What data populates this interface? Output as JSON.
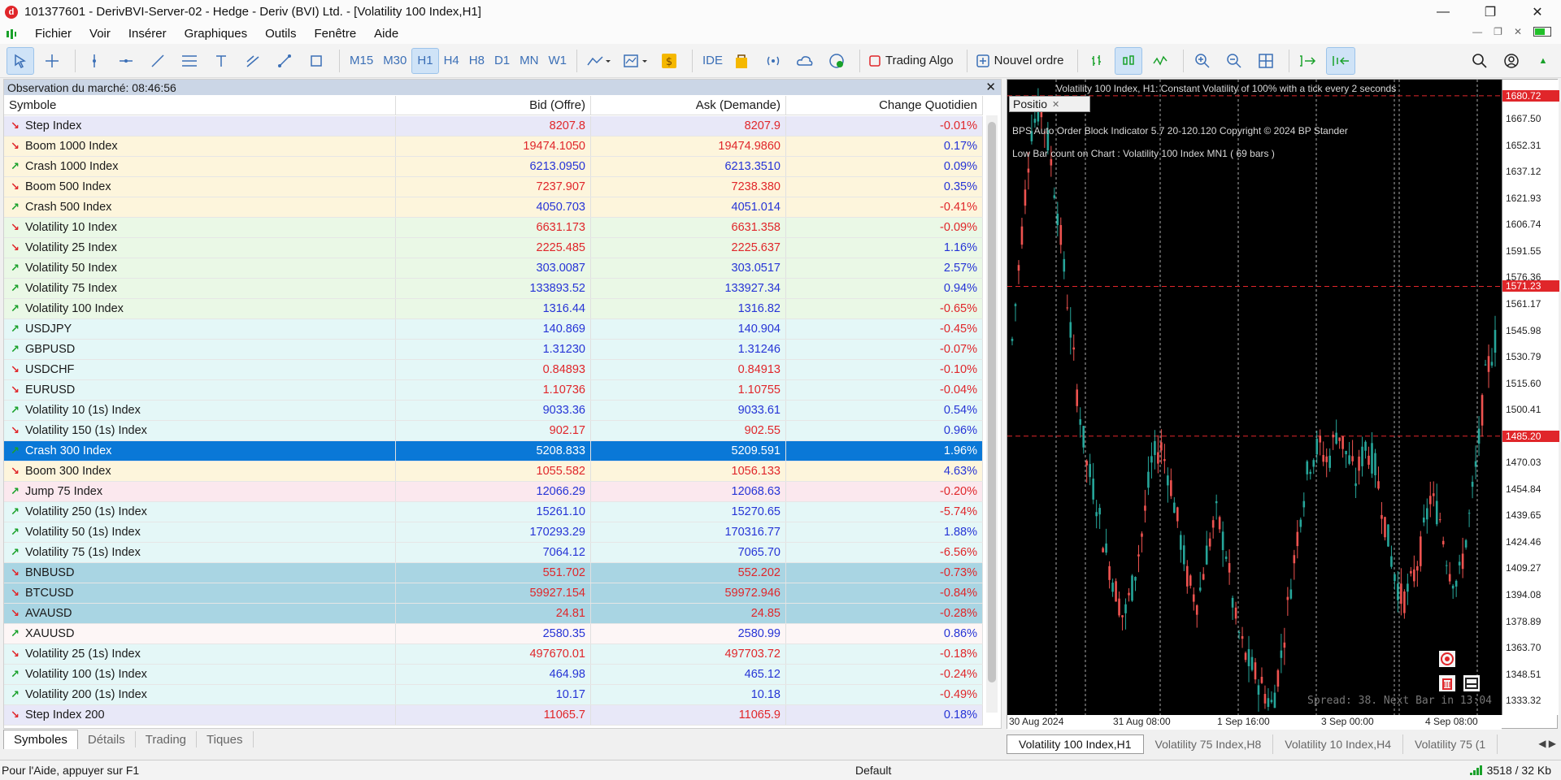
{
  "window": {
    "title": "101377601 - DerivBVI-Server-02 - Hedge - Deriv (BVI) Ltd. - [Volatility 100 Index,H1]",
    "logo_letter": "d"
  },
  "menu": [
    "Fichier",
    "Voir",
    "Insérer",
    "Graphiques",
    "Outils",
    "Fenêtre",
    "Aide"
  ],
  "toolbar": {
    "timeframes": [
      "M15",
      "M30",
      "H1",
      "H4",
      "H8",
      "D1",
      "MN",
      "W1"
    ],
    "active_timeframe": "H1",
    "ide_label": "IDE",
    "algo_label": "Trading Algo",
    "new_order_label": "Nouvel ordre"
  },
  "market_watch": {
    "header": "Observation du marché: 08:46:56",
    "columns": [
      "Symbole",
      "Bid (Offre)",
      "Ask (Demande)",
      "Change Quotidien"
    ],
    "rows": [
      {
        "symbol": "Step Index",
        "bid": "8207.8",
        "ask": "8207.9",
        "change": "-0.01%",
        "dir": "dn",
        "bg": "#e8e8f8",
        "color": "red"
      },
      {
        "symbol": "Boom 1000 Index",
        "bid": "19474.1050",
        "ask": "19474.9860",
        "change": "0.17%",
        "dir": "dn",
        "bg": "#fdf5dc",
        "color": "red"
      },
      {
        "symbol": "Crash 1000 Index",
        "bid": "6213.0950",
        "ask": "6213.3510",
        "change": "0.09%",
        "dir": "up",
        "bg": "#fdf5dc",
        "color": "blue"
      },
      {
        "symbol": "Boom 500 Index",
        "bid": "7237.907",
        "ask": "7238.380",
        "change": "0.35%",
        "dir": "dn",
        "bg": "#fdf5dc",
        "color": "red"
      },
      {
        "symbol": "Crash 500 Index",
        "bid": "4050.703",
        "ask": "4051.014",
        "change": "-0.41%",
        "dir": "up",
        "bg": "#fdf5dc",
        "color": "blue"
      },
      {
        "symbol": "Volatility 10 Index",
        "bid": "6631.173",
        "ask": "6631.358",
        "change": "-0.09%",
        "dir": "dn",
        "bg": "#eaf8e6",
        "color": "red"
      },
      {
        "symbol": "Volatility 25 Index",
        "bid": "2225.485",
        "ask": "2225.637",
        "change": "1.16%",
        "dir": "dn",
        "bg": "#eaf8e6",
        "color": "red"
      },
      {
        "symbol": "Volatility 50 Index",
        "bid": "303.0087",
        "ask": "303.0517",
        "change": "2.57%",
        "dir": "up",
        "bg": "#eaf8e6",
        "color": "blue"
      },
      {
        "symbol": "Volatility 75 Index",
        "bid": "133893.52",
        "ask": "133927.34",
        "change": "0.94%",
        "dir": "up",
        "bg": "#eaf8e6",
        "color": "blue"
      },
      {
        "symbol": "Volatility 100 Index",
        "bid": "1316.44",
        "ask": "1316.82",
        "change": "-0.65%",
        "dir": "up",
        "bg": "#eaf8e6",
        "color": "blue"
      },
      {
        "symbol": "USDJPY",
        "bid": "140.869",
        "ask": "140.904",
        "change": "-0.45%",
        "dir": "up",
        "bg": "#e4f7f7",
        "color": "blue"
      },
      {
        "symbol": "GBPUSD",
        "bid": "1.31230",
        "ask": "1.31246",
        "change": "-0.07%",
        "dir": "up",
        "bg": "#e4f7f7",
        "color": "blue"
      },
      {
        "symbol": "USDCHF",
        "bid": "0.84893",
        "ask": "0.84913",
        "change": "-0.10%",
        "dir": "dn",
        "bg": "#e4f7f7",
        "color": "red"
      },
      {
        "symbol": "EURUSD",
        "bid": "1.10736",
        "ask": "1.10755",
        "change": "-0.04%",
        "dir": "dn",
        "bg": "#e4f7f7",
        "color": "red"
      },
      {
        "symbol": "Volatility 10 (1s) Index",
        "bid": "9033.36",
        "ask": "9033.61",
        "change": "0.54%",
        "dir": "up",
        "bg": "#e4f7f7",
        "color": "blue"
      },
      {
        "symbol": "Volatility 150 (1s) Index",
        "bid": "902.17",
        "ask": "902.55",
        "change": "0.96%",
        "dir": "dn",
        "bg": "#e4f7f7",
        "color": "red"
      },
      {
        "symbol": "Crash 300 Index",
        "bid": "5208.833",
        "ask": "5209.591",
        "change": "1.96%",
        "dir": "up",
        "bg": "#0a78d7",
        "color": "blue",
        "selected": true
      },
      {
        "symbol": "Boom 300 Index",
        "bid": "1055.582",
        "ask": "1056.133",
        "change": "4.63%",
        "dir": "dn",
        "bg": "#fdf5dc",
        "color": "red"
      },
      {
        "symbol": "Jump 75 Index",
        "bid": "12066.29",
        "ask": "12068.63",
        "change": "-0.20%",
        "dir": "up",
        "bg": "#fbe8ee",
        "color": "blue"
      },
      {
        "symbol": "Volatility 250 (1s) Index",
        "bid": "15261.10",
        "ask": "15270.65",
        "change": "-5.74%",
        "dir": "up",
        "bg": "#e4f7f7",
        "color": "blue"
      },
      {
        "symbol": "Volatility 50 (1s) Index",
        "bid": "170293.29",
        "ask": "170316.77",
        "change": "1.88%",
        "dir": "up",
        "bg": "#e4f7f7",
        "color": "blue"
      },
      {
        "symbol": "Volatility 75 (1s) Index",
        "bid": "7064.12",
        "ask": "7065.70",
        "change": "-6.56%",
        "dir": "up",
        "bg": "#e4f7f7",
        "color": "blue"
      },
      {
        "symbol": "BNBUSD",
        "bid": "551.702",
        "ask": "552.202",
        "change": "-0.73%",
        "dir": "dn",
        "bg": "#a9d5e3",
        "color": "red"
      },
      {
        "symbol": "BTCUSD",
        "bid": "59927.154",
        "ask": "59972.946",
        "change": "-0.84%",
        "dir": "dn",
        "bg": "#a9d5e3",
        "color": "red"
      },
      {
        "symbol": "AVAUSD",
        "bid": "24.81",
        "ask": "24.85",
        "change": "-0.28%",
        "dir": "dn",
        "bg": "#a9d5e3",
        "color": "red"
      },
      {
        "symbol": "XAUUSD",
        "bid": "2580.35",
        "ask": "2580.99",
        "change": "0.86%",
        "dir": "up",
        "bg": "#fdf6f6",
        "color": "blue"
      },
      {
        "symbol": "Volatility 25 (1s) Index",
        "bid": "497670.01",
        "ask": "497703.72",
        "change": "-0.18%",
        "dir": "dn",
        "bg": "#e4f7f7",
        "color": "red"
      },
      {
        "symbol": "Volatility 100 (1s) Index",
        "bid": "464.98",
        "ask": "465.12",
        "change": "-0.24%",
        "dir": "up",
        "bg": "#e4f7f7",
        "color": "blue"
      },
      {
        "symbol": "Volatility 200 (1s) Index",
        "bid": "10.17",
        "ask": "10.18",
        "change": "-0.49%",
        "dir": "up",
        "bg": "#e4f7f7",
        "color": "blue"
      },
      {
        "symbol": "Step Index 200",
        "bid": "11065.7",
        "ask": "11065.9",
        "change": "0.18%",
        "dir": "dn",
        "bg": "#e8e8f8",
        "color": "red"
      }
    ],
    "tabs": [
      "Symboles",
      "Détails",
      "Trading",
      "Tiques"
    ],
    "active_tab": "Symboles"
  },
  "chart": {
    "header_line": "Volatility 100 Index, H1:  Constant Volatility of 100% with a tick every 2 seconds",
    "indicator_line": "BPS Auto Order Block Indicator  5.7 20-120.120 Copyright © 2024 BP Stander",
    "bar_count_line": "Low Bar count on Chart :  Volatility 100 Index   MN1     (  69  bars   )",
    "positio_label": "Positio",
    "spread_text": "Spread: 38. Next Bar in 13:04",
    "price_ticks": [
      "1667.50",
      "1652.31",
      "1637.12",
      "1621.93",
      "1606.74",
      "1591.55",
      "1576.36",
      "1561.17",
      "1545.98",
      "1530.79",
      "1515.60",
      "1500.41",
      "1485.20",
      "1470.03",
      "1454.84",
      "1439.65",
      "1424.46",
      "1409.27",
      "1394.08",
      "1378.89",
      "1363.70",
      "1348.51",
      "1333.32"
    ],
    "price_tags": [
      {
        "label": "1680.72",
        "value": 1680.72
      },
      {
        "label": "1571.23",
        "value": 1571.23
      },
      {
        "label": "1485.20",
        "value": 1485.2
      }
    ],
    "time_ticks": [
      "30 Aug 2024",
      "31 Aug 08:00",
      "1 Sep 16:00",
      "3 Sep 00:00",
      "4 Sep 08:00"
    ],
    "ylim": [
      1325,
      1690
    ],
    "colors": {
      "bull": "#26a69a",
      "bear": "#ef5350",
      "level": "#e0262a"
    }
  },
  "chart_tabs": [
    "Volatility 100 Index,H1",
    "Volatility 75 Index,H8",
    "Volatility 10 Index,H4",
    "Volatility 75 (1"
  ],
  "status": {
    "help": "Pour l'Aide, appuyer sur F1",
    "profile": "Default",
    "traffic": "3518 / 32 Kb"
  }
}
